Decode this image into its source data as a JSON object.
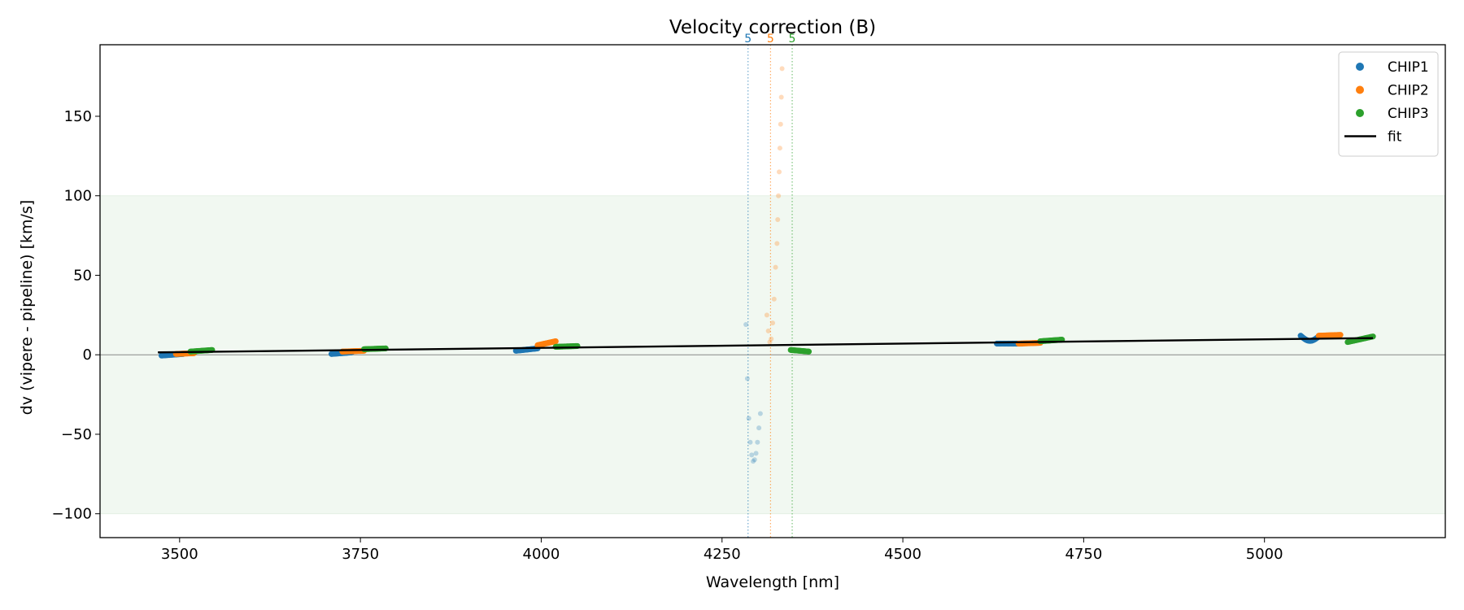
{
  "chart_data": {
    "type": "scatter",
    "title": "Velocity correction (B)",
    "xlabel": "Wavelength [nm]",
    "ylabel": "dv (vipere - pipeline) [km/s]",
    "xlim": [
      3390,
      5250
    ],
    "ylim": [
      -115,
      195
    ],
    "xticks": [
      3500,
      3750,
      4000,
      4250,
      4500,
      4750,
      5000
    ],
    "xtick_labels": [
      "3500",
      "3750",
      "4000",
      "4250",
      "4500",
      "4750",
      "5000"
    ],
    "yticks": [
      -100,
      -50,
      0,
      50,
      100,
      150
    ],
    "ytick_labels": [
      "−100",
      "−50",
      "0",
      "50",
      "100",
      "150"
    ],
    "accepted_band": [
      -100,
      100
    ],
    "zero_line": 0,
    "legend": {
      "placement": "top-right",
      "entries": [
        {
          "label": "CHIP1",
          "kind": "marker",
          "color": "#1f77b4"
        },
        {
          "label": "CHIP2",
          "kind": "marker",
          "color": "#ff7f0e"
        },
        {
          "label": "CHIP3",
          "kind": "marker",
          "color": "#2ca02c"
        },
        {
          "label": "fit",
          "kind": "line",
          "color": "#000000"
        }
      ]
    },
    "series": [
      {
        "name": "CHIP1",
        "color": "#1f77b4",
        "clusters": [
          {
            "x_start": 3475,
            "x_end": 3505,
            "y_start": -0.5,
            "y_end": 0.5
          },
          {
            "x_start": 3710,
            "x_end": 3738,
            "y_start": 0.5,
            "y_end": 1.5
          },
          {
            "x_start": 3965,
            "x_end": 3995,
            "y_start": 2.5,
            "y_end": 4.0
          },
          {
            "x_start": 4630,
            "x_end": 4665,
            "y_start": 7.0,
            "y_end": 7.0
          },
          {
            "x_start": 5050,
            "x_end": 5075,
            "y_start": 12.0,
            "y_end": 11.5,
            "dip": 3
          }
        ]
      },
      {
        "name": "CHIP2",
        "color": "#ff7f0e",
        "clusters": [
          {
            "x_start": 3495,
            "x_end": 3520,
            "y_start": 0.5,
            "y_end": 1.0
          },
          {
            "x_start": 3725,
            "x_end": 3755,
            "y_start": 2.0,
            "y_end": 2.5
          },
          {
            "x_start": 3995,
            "x_end": 4020,
            "y_start": 6.0,
            "y_end": 8.5
          },
          {
            "x_start": 4660,
            "x_end": 4690,
            "y_start": 7.0,
            "y_end": 7.5
          },
          {
            "x_start": 5075,
            "x_end": 5105,
            "y_start": 12.0,
            "y_end": 12.5
          }
        ]
      },
      {
        "name": "CHIP3",
        "color": "#2ca02c",
        "clusters": [
          {
            "x_start": 3515,
            "x_end": 3545,
            "y_start": 2.0,
            "y_end": 3.0
          },
          {
            "x_start": 3755,
            "x_end": 3785,
            "y_start": 3.5,
            "y_end": 4.0
          },
          {
            "x_start": 4020,
            "x_end": 4050,
            "y_start": 5.0,
            "y_end": 5.5
          },
          {
            "x_start": 4345,
            "x_end": 4370,
            "y_start": 3.0,
            "y_end": 2.0
          },
          {
            "x_start": 4690,
            "x_end": 4720,
            "y_start": 8.5,
            "y_end": 9.5
          },
          {
            "x_start": 5115,
            "x_end": 5150,
            "y_start": 8.0,
            "y_end": 11.5
          }
        ]
      }
    ],
    "outlier_orders": [
      {
        "chip": "CHIP1",
        "color": "#1f77b4",
        "label": "5",
        "x_line": 4286,
        "x": [
          4283,
          4285,
          4287,
          4289,
          4291,
          4293,
          4295,
          4297,
          4299,
          4301,
          4303
        ],
        "y": [
          19,
          -15,
          -40,
          -55,
          -63,
          -67,
          -66,
          -62,
          -55,
          -46,
          -37
        ]
      },
      {
        "chip": "CHIP2",
        "color": "#ff7f0e",
        "label": "5",
        "x_line": 4317,
        "x": [
          4312,
          4314,
          4316,
          4318,
          4320,
          4322,
          4324,
          4326,
          4327,
          4328,
          4329,
          4330,
          4331,
          4332,
          4333
        ],
        "y": [
          25,
          15,
          8,
          10,
          20,
          35,
          55,
          70,
          85,
          100,
          115,
          130,
          145,
          162,
          180
        ]
      },
      {
        "chip": "CHIP3",
        "color": "#2ca02c",
        "label": "5",
        "x_line": 4347
      }
    ],
    "fit": {
      "color": "#000000",
      "x": [
        3470,
        5150
      ],
      "y": [
        1.5,
        10.5
      ]
    }
  }
}
